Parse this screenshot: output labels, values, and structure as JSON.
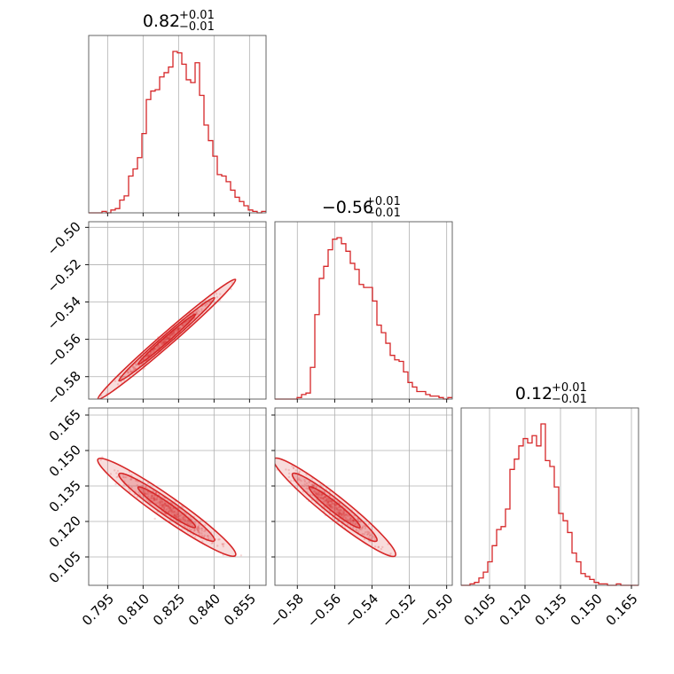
{
  "colors": {
    "series": "#d62728",
    "grid": "#b0b0b0",
    "frame": "#555555"
  },
  "chart_data": {
    "type": "corner",
    "parameters": [
      {
        "title_main": "0.82",
        "title_plus": "+0.01",
        "title_minus": "−0.01",
        "range": [
          0.787,
          0.862
        ],
        "ticks": [
          0.795,
          0.81,
          0.825,
          0.84,
          0.855
        ],
        "tick_labels": [
          "0.795",
          "0.810",
          "0.825",
          "0.840",
          "0.855"
        ],
        "hist_values": [
          0,
          0,
          0,
          1,
          0,
          2,
          3,
          9,
          12,
          26,
          31,
          39,
          56,
          80,
          86,
          87,
          96,
          99,
          103,
          114,
          113,
          105,
          94,
          92,
          106,
          83,
          62,
          51,
          40,
          27,
          26,
          22,
          16,
          11,
          8,
          5,
          2,
          1,
          0,
          1
        ]
      },
      {
        "title_main": "−0.56",
        "title_plus": "+0.01",
        "title_minus": "−0.01",
        "range": [
          -0.592,
          -0.497
        ],
        "ticks": [
          -0.58,
          -0.56,
          -0.54,
          -0.52,
          -0.5
        ],
        "tick_labels": [
          "−0.58",
          "−0.56",
          "−0.54",
          "−0.52",
          "−0.50"
        ],
        "hist_values": [
          0,
          0,
          0,
          0,
          0,
          1,
          3,
          4,
          21,
          56,
          80,
          88,
          99,
          106,
          107,
          103,
          98,
          90,
          86,
          76,
          74,
          74,
          65,
          49,
          44,
          37,
          29,
          26,
          25,
          18,
          11,
          8,
          5,
          5,
          3,
          2,
          2,
          1,
          0,
          1
        ]
      },
      {
        "title_main": "0.12",
        "title_plus": "+0.01",
        "title_minus": "−0.01",
        "range": [
          0.093,
          0.168
        ],
        "ticks": [
          0.105,
          0.12,
          0.135,
          0.15,
          0.165
        ],
        "tick_labels": [
          "0.105",
          "0.120",
          "0.135",
          "0.150",
          "0.165"
        ],
        "hist_values": [
          0,
          0,
          1,
          2,
          5,
          9,
          16,
          27,
          38,
          40,
          52,
          79,
          86,
          95,
          100,
          97,
          102,
          95,
          110,
          85,
          81,
          67,
          49,
          44,
          36,
          22,
          16,
          8,
          6,
          4,
          2,
          1,
          1,
          0,
          0,
          1,
          0,
          0,
          0,
          0
        ]
      }
    ],
    "correlations": {
      "p1_p0": {
        "slope": 1.102,
        "mean": [
          0.82,
          -0.56
        ]
      },
      "p2_p0": {
        "slope": -0.7,
        "mean": [
          0.82,
          0.126
        ]
      },
      "p2_p1": {
        "slope": -0.63,
        "mean": [
          -0.56,
          0.126
        ]
      }
    },
    "grid": true
  }
}
